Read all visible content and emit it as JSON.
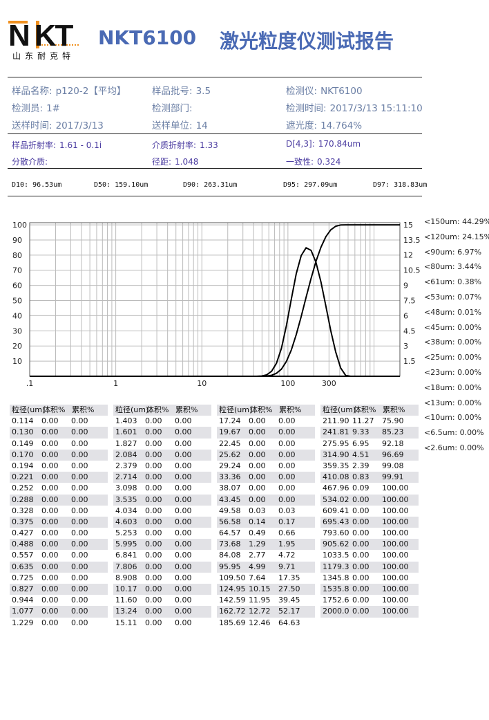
{
  "logo": {
    "letters": "NKT",
    "company": "山东耐克特",
    "accent": "#f0901e"
  },
  "header": {
    "model": "NKT6100",
    "title": "激光粒度仪测试报告",
    "title_color": "#4a6ab4"
  },
  "info": [
    {
      "label": "样品名称:",
      "value": "p120-2【平均】"
    },
    {
      "label": "样品批号:",
      "value": "3.5"
    },
    {
      "label": "检测仪:",
      "value": "NKT6100"
    },
    {
      "label": "检测员:",
      "value": "1#"
    },
    {
      "label": "检测部门:",
      "value": ""
    },
    {
      "label": "检测时间:",
      "value": "2017/3/13 15:11:10"
    },
    {
      "label": "送样时间:",
      "value": "2017/3/13"
    },
    {
      "label": "送样单位:",
      "value": "14"
    },
    {
      "label": "遮光度:",
      "value": "14.764%"
    }
  ],
  "optics": [
    {
      "label": "样品折射率:",
      "value": "1.61 - 0.1i"
    },
    {
      "label": "介质折射率:",
      "value": "1.33"
    },
    {
      "label": "D[4,3]:",
      "value": "170.84um"
    },
    {
      "label": "分散介质:",
      "value": ""
    },
    {
      "label": "径距:",
      "value": "1.048"
    },
    {
      "label": "一致性:",
      "value": "0.324"
    }
  ],
  "dvalues": [
    "D10: 96.53um",
    "D50: 159.10um",
    "D90: 263.31um",
    "D95: 297.09um",
    "D97: 318.83um"
  ],
  "side_stats": [
    "<150um: 44.29%",
    "<120um: 24.15%",
    "<90um: 6.97%",
    "<80um: 3.44%",
    "<61um: 0.38%",
    "<53um: 0.07%",
    "<48um: 0.01%",
    "<45um: 0.00%",
    "<38um: 0.00%",
    "<25um: 0.00%",
    "<23um: 0.00%",
    "<18um: 0.00%",
    "<13um: 0.00%",
    "<10um: 0.00%",
    "<6.5um: 0.00%",
    "<2.6um: 0.00%"
  ],
  "table_headers": [
    "粒径(um)",
    "体积%",
    "累积%"
  ],
  "table": [
    [
      "0.114",
      "0.00",
      "0.00"
    ],
    [
      "0.130",
      "0.00",
      "0.00"
    ],
    [
      "0.149",
      "0.00",
      "0.00"
    ],
    [
      "0.170",
      "0.00",
      "0.00"
    ],
    [
      "0.194",
      "0.00",
      "0.00"
    ],
    [
      "0.221",
      "0.00",
      "0.00"
    ],
    [
      "0.252",
      "0.00",
      "0.00"
    ],
    [
      "0.288",
      "0.00",
      "0.00"
    ],
    [
      "0.328",
      "0.00",
      "0.00"
    ],
    [
      "0.375",
      "0.00",
      "0.00"
    ],
    [
      "0.427",
      "0.00",
      "0.00"
    ],
    [
      "0.488",
      "0.00",
      "0.00"
    ],
    [
      "0.557",
      "0.00",
      "0.00"
    ],
    [
      "0.635",
      "0.00",
      "0.00"
    ],
    [
      "0.725",
      "0.00",
      "0.00"
    ],
    [
      "0.827",
      "0.00",
      "0.00"
    ],
    [
      "0.944",
      "0.00",
      "0.00"
    ],
    [
      "1.077",
      "0.00",
      "0.00"
    ],
    [
      "1.229",
      "0.00",
      "0.00"
    ],
    [
      "1.403",
      "0.00",
      "0.00"
    ],
    [
      "1.601",
      "0.00",
      "0.00"
    ],
    [
      "1.827",
      "0.00",
      "0.00"
    ],
    [
      "2.084",
      "0.00",
      "0.00"
    ],
    [
      "2.379",
      "0.00",
      "0.00"
    ],
    [
      "2.714",
      "0.00",
      "0.00"
    ],
    [
      "3.098",
      "0.00",
      "0.00"
    ],
    [
      "3.535",
      "0.00",
      "0.00"
    ],
    [
      "4.034",
      "0.00",
      "0.00"
    ],
    [
      "4.603",
      "0.00",
      "0.00"
    ],
    [
      "5.253",
      "0.00",
      "0.00"
    ],
    [
      "5.995",
      "0.00",
      "0.00"
    ],
    [
      "6.841",
      "0.00",
      "0.00"
    ],
    [
      "7.806",
      "0.00",
      "0.00"
    ],
    [
      "8.908",
      "0.00",
      "0.00"
    ],
    [
      "10.17",
      "0.00",
      "0.00"
    ],
    [
      "11.60",
      "0.00",
      "0.00"
    ],
    [
      "13.24",
      "0.00",
      "0.00"
    ],
    [
      "15.11",
      "0.00",
      "0.00"
    ],
    [
      "17.24",
      "0.00",
      "0.00"
    ],
    [
      "19.67",
      "0.00",
      "0.00"
    ],
    [
      "22.45",
      "0.00",
      "0.00"
    ],
    [
      "25.62",
      "0.00",
      "0.00"
    ],
    [
      "29.24",
      "0.00",
      "0.00"
    ],
    [
      "33.36",
      "0.00",
      "0.00"
    ],
    [
      "38.07",
      "0.00",
      "0.00"
    ],
    [
      "43.45",
      "0.00",
      "0.00"
    ],
    [
      "49.58",
      "0.03",
      "0.03"
    ],
    [
      "56.58",
      "0.14",
      "0.17"
    ],
    [
      "64.57",
      "0.49",
      "0.66"
    ],
    [
      "73.68",
      "1.29",
      "1.95"
    ],
    [
      "84.08",
      "2.77",
      "4.72"
    ],
    [
      "95.95",
      "4.99",
      "9.71"
    ],
    [
      "109.50",
      "7.64",
      "17.35"
    ],
    [
      "124.95",
      "10.15",
      "27.50"
    ],
    [
      "142.59",
      "11.95",
      "39.45"
    ],
    [
      "162.72",
      "12.72",
      "52.17"
    ],
    [
      "185.69",
      "12.46",
      "64.63"
    ],
    [
      "211.90",
      "11.27",
      "75.90"
    ],
    [
      "241.81",
      "9.33",
      "85.23"
    ],
    [
      "275.95",
      "6.95",
      "92.18"
    ],
    [
      "314.90",
      "4.51",
      "96.69"
    ],
    [
      "359.35",
      "2.39",
      "99.08"
    ],
    [
      "410.08",
      "0.83",
      "99.91"
    ],
    [
      "467.96",
      "0.09",
      "100.00"
    ],
    [
      "534.02",
      "0.00",
      "100.00"
    ],
    [
      "609.41",
      "0.00",
      "100.00"
    ],
    [
      "695.43",
      "0.00",
      "100.00"
    ],
    [
      "793.60",
      "0.00",
      "100.00"
    ],
    [
      "905.62",
      "0.00",
      "100.00"
    ],
    [
      "1033.5",
      "0.00",
      "100.00"
    ],
    [
      "1179.3",
      "0.00",
      "100.00"
    ],
    [
      "1345.8",
      "0.00",
      "100.00"
    ],
    [
      "1535.8",
      "0.00",
      "100.00"
    ],
    [
      "1752.6",
      "0.00",
      "100.00"
    ],
    [
      "2000.0",
      "0.00",
      "100.00"
    ]
  ],
  "chart_data": {
    "type": "line",
    "x_scale": "log",
    "xlim": [
      0.1,
      2000
    ],
    "x_ticks": [
      ".1",
      "1",
      "10",
      "100",
      "300"
    ],
    "x_tick_values": [
      0.1,
      1,
      10,
      100,
      300
    ],
    "y_left_lim": [
      0,
      101.4
    ],
    "y_left_ticks": [
      "10",
      "20",
      "30",
      "40",
      "50",
      "60",
      "70",
      "80",
      "90",
      "100"
    ],
    "y_right_lim": [
      0,
      15.2
    ],
    "y_right_ticks": [
      "1.5",
      "3",
      "4.5",
      "6",
      "7.5",
      "9",
      "10.5",
      "12",
      "13.5",
      "15"
    ],
    "grid": true,
    "series": [
      {
        "axis": "right",
        "source": "volume% column of table"
      },
      {
        "axis": "left",
        "source": "cumulative% column of table"
      }
    ]
  }
}
